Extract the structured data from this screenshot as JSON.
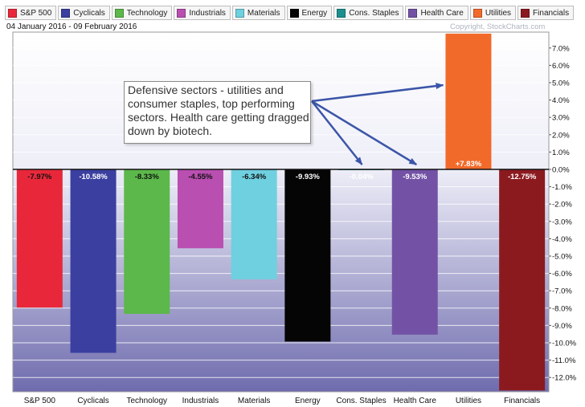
{
  "header": {
    "date_range": "04 January 2016 - 09 February 2016",
    "copyright": "Copyright, StockCharts.com"
  },
  "annotation": {
    "text": "Defensive sectors - utilities and consumer staples, top performing sectors. Health care getting dragged down by biotech."
  },
  "chart_data": {
    "type": "bar",
    "title": "",
    "xlabel": "",
    "ylabel": "",
    "categories": [
      "S&P 500",
      "Cyclicals",
      "Technology",
      "Industrials",
      "Materials",
      "Energy",
      "Cons. Staples",
      "Health Care",
      "Utilities",
      "Financials"
    ],
    "values": [
      -7.97,
      -10.58,
      -8.33,
      -4.55,
      -6.34,
      -9.93,
      -0.04,
      -9.53,
      7.83,
      -12.75
    ],
    "data_labels": [
      "-7.97%",
      "-10.58%",
      "-8.33%",
      "-4.55%",
      "-6.34%",
      "-9.93%",
      "-0.04%",
      "-9.53%",
      "+7.83%",
      "-12.75%"
    ],
    "colors": [
      "#e8283a",
      "#3a3fa0",
      "#5cb84a",
      "#b94fb0",
      "#6fd0df",
      "#050505",
      "#1b8f8f",
      "#7352a6",
      "#f26a2a",
      "#8b1a1f"
    ],
    "label_colors": [
      "#111111",
      "#ffffff",
      "#111111",
      "#111111",
      "#111111",
      "#ffffff",
      "#ffffff",
      "#ffffff",
      "#ffffff",
      "#ffffff"
    ],
    "ylim": [
      -12.75,
      7.9
    ],
    "yticks": [
      7,
      6,
      5,
      4,
      3,
      2,
      1,
      0,
      -1,
      -2,
      -3,
      -4,
      -5,
      -6,
      -7,
      -8,
      -9,
      -10,
      -11,
      -12
    ],
    "ytick_labels": [
      "7.0%",
      "6.0%",
      "5.0%",
      "4.0%",
      "3.0%",
      "2.0%",
      "1.0%",
      "0.0%",
      "-1.0%",
      "-2.0%",
      "-3.0%",
      "-4.0%",
      "-5.0%",
      "-6.0%",
      "-7.0%",
      "-8.0%",
      "-9.0%",
      "-10.0%",
      "-11.0%",
      "-12.0%"
    ],
    "grid": true,
    "legend": {
      "placement": "top",
      "entries": [
        "S&P 500",
        "Cyclicals",
        "Technology",
        "Industrials",
        "Materials",
        "Energy",
        "Cons. Staples",
        "Health Care",
        "Utilities",
        "Financials"
      ]
    },
    "annotation_arrow_targets": [
      "Utilities",
      "Cons. Staples",
      "Health Care"
    ]
  }
}
